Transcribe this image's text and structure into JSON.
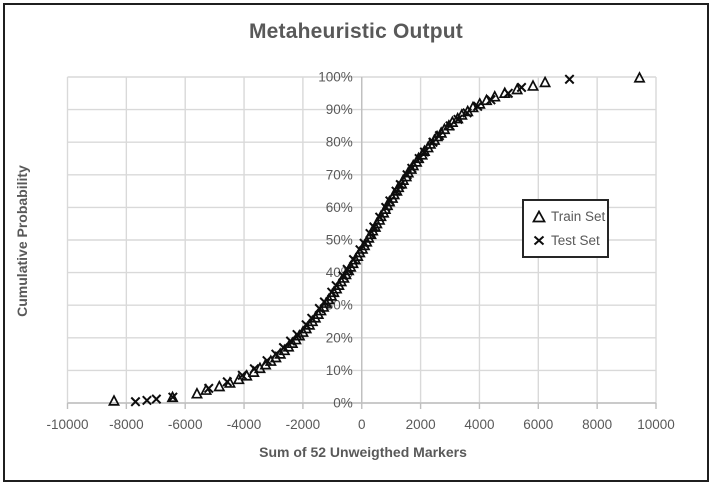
{
  "chart_data": {
    "type": "scatter",
    "title": "Metaheuristic Output",
    "xlabel": "Sum of 52 Unweigthed Markers",
    "ylabel": "Cumulative Probability",
    "xlim": [
      -10000,
      10000
    ],
    "ylim": [
      0,
      100
    ],
    "grid": true,
    "x_ticks": [
      -10000,
      -8000,
      -6000,
      -4000,
      -2000,
      0,
      2000,
      4000,
      6000,
      8000,
      10000
    ],
    "x_tick_labels": [
      "-10000",
      "-8000",
      "-6000",
      "-4000",
      "-2000",
      "0",
      "2000",
      "4000",
      "6000",
      "8000",
      "10000"
    ],
    "y_ticks": [
      0,
      10,
      20,
      30,
      40,
      50,
      60,
      70,
      80,
      90,
      100
    ],
    "y_tick_labels": [
      "0%",
      "10%",
      "20%",
      "30%",
      "40%",
      "50%",
      "60%",
      "70%",
      "80%",
      "90%",
      "100%"
    ],
    "colors": {
      "text": "#595959",
      "grid": "#d9d9d9",
      "axis": "#bfbfbf",
      "marker": "#0d0d0d"
    },
    "legend": {
      "position": "inside-right",
      "entries": [
        {
          "label": "Train Set",
          "marker": "triangle"
        },
        {
          "label": "Test Set",
          "marker": "x"
        }
      ]
    },
    "series": [
      {
        "name": "Train Set",
        "marker": "triangle",
        "points": [
          [
            -8420,
            0.6
          ],
          [
            -6430,
            1.7
          ],
          [
            -5600,
            2.8
          ],
          [
            -5290,
            3.9
          ],
          [
            -4840,
            5.0
          ],
          [
            -4480,
            6.1
          ],
          [
            -4180,
            7.2
          ],
          [
            -3910,
            8.3
          ],
          [
            -3670,
            9.4
          ],
          [
            -3460,
            10.6
          ],
          [
            -3270,
            11.7
          ],
          [
            -3090,
            12.8
          ],
          [
            -2920,
            13.9
          ],
          [
            -2770,
            15.0
          ],
          [
            -2630,
            16.1
          ],
          [
            -2490,
            17.2
          ],
          [
            -2360,
            18.3
          ],
          [
            -2240,
            19.4
          ],
          [
            -2120,
            20.6
          ],
          [
            -2000,
            21.7
          ],
          [
            -1890,
            22.8
          ],
          [
            -1780,
            23.9
          ],
          [
            -1680,
            25.0
          ],
          [
            -1580,
            26.1
          ],
          [
            -1480,
            27.2
          ],
          [
            -1390,
            28.3
          ],
          [
            -1300,
            29.4
          ],
          [
            -1210,
            30.6
          ],
          [
            -1120,
            31.7
          ],
          [
            -1030,
            32.8
          ],
          [
            -950,
            33.9
          ],
          [
            -860,
            35.0
          ],
          [
            -780,
            36.1
          ],
          [
            -700,
            37.2
          ],
          [
            -610,
            38.3
          ],
          [
            -540,
            39.4
          ],
          [
            -450,
            40.6
          ],
          [
            -380,
            41.7
          ],
          [
            -300,
            42.8
          ],
          [
            -220,
            43.9
          ],
          [
            -140,
            45.0
          ],
          [
            -70,
            46.1
          ],
          [
            20,
            47.2
          ],
          [
            90,
            48.3
          ],
          [
            165,
            49.4
          ],
          [
            235,
            50.6
          ],
          [
            310,
            51.7
          ],
          [
            370,
            52.8
          ],
          [
            460,
            53.9
          ],
          [
            510,
            55.0
          ],
          [
            600,
            56.1
          ],
          [
            650,
            57.2
          ],
          [
            740,
            58.3
          ],
          [
            800,
            59.4
          ],
          [
            870,
            60.6
          ],
          [
            940,
            61.7
          ],
          [
            1040,
            62.8
          ],
          [
            1100,
            63.9
          ],
          [
            1190,
            65.0
          ],
          [
            1250,
            66.1
          ],
          [
            1350,
            67.2
          ],
          [
            1410,
            68.3
          ],
          [
            1510,
            69.4
          ],
          [
            1580,
            70.6
          ],
          [
            1680,
            71.7
          ],
          [
            1750,
            72.8
          ],
          [
            1860,
            73.9
          ],
          [
            1930,
            75.0
          ],
          [
            2050,
            76.1
          ],
          [
            2130,
            77.2
          ],
          [
            2250,
            78.3
          ],
          [
            2330,
            79.4
          ],
          [
            2470,
            80.6
          ],
          [
            2560,
            81.7
          ],
          [
            2700,
            82.8
          ],
          [
            2810,
            83.9
          ],
          [
            2960,
            85.0
          ],
          [
            3080,
            86.1
          ],
          [
            3260,
            87.2
          ],
          [
            3400,
            88.3
          ],
          [
            3600,
            89.4
          ],
          [
            3780,
            90.6
          ],
          [
            4010,
            91.7
          ],
          [
            4240,
            92.8
          ],
          [
            4520,
            93.9
          ],
          [
            4860,
            95.0
          ],
          [
            5280,
            96.1
          ],
          [
            5820,
            97.2
          ],
          [
            6230,
            98.3
          ],
          [
            9440,
            99.7
          ]
        ]
      },
      {
        "name": "Test Set",
        "marker": "x",
        "points": [
          [
            -7690,
            0.4
          ],
          [
            -7300,
            0.8
          ],
          [
            -6980,
            1.2
          ],
          [
            -6420,
            1.8
          ],
          [
            -5200,
            4.5
          ],
          [
            -4570,
            6.5
          ],
          [
            -4060,
            8.5
          ],
          [
            -3650,
            10.5
          ],
          [
            -3220,
            13
          ],
          [
            -2920,
            15
          ],
          [
            -2660,
            17
          ],
          [
            -2420,
            19
          ],
          [
            -2200,
            21
          ],
          [
            -1890,
            24
          ],
          [
            -1700,
            26
          ],
          [
            -1440,
            29
          ],
          [
            -1270,
            31
          ],
          [
            -1020,
            34
          ],
          [
            -870,
            36
          ],
          [
            -640,
            39
          ],
          [
            -495,
            41
          ],
          [
            -280,
            44
          ],
          [
            -60,
            47
          ],
          [
            80,
            49
          ],
          [
            280,
            52
          ],
          [
            410,
            54
          ],
          [
            610,
            57
          ],
          [
            815,
            60
          ],
          [
            955,
            62
          ],
          [
            1165,
            65
          ],
          [
            1310,
            67
          ],
          [
            1540,
            70
          ],
          [
            1700,
            72
          ],
          [
            1950,
            75
          ],
          [
            2130,
            77
          ],
          [
            2420,
            80
          ],
          [
            2640,
            82
          ],
          [
            3000,
            85
          ],
          [
            3270,
            87
          ],
          [
            3580,
            89
          ],
          [
            3940,
            91
          ],
          [
            4390,
            93
          ],
          [
            4980,
            95
          ],
          [
            5430,
            96.8
          ],
          [
            7060,
            99.3
          ]
        ]
      }
    ]
  }
}
